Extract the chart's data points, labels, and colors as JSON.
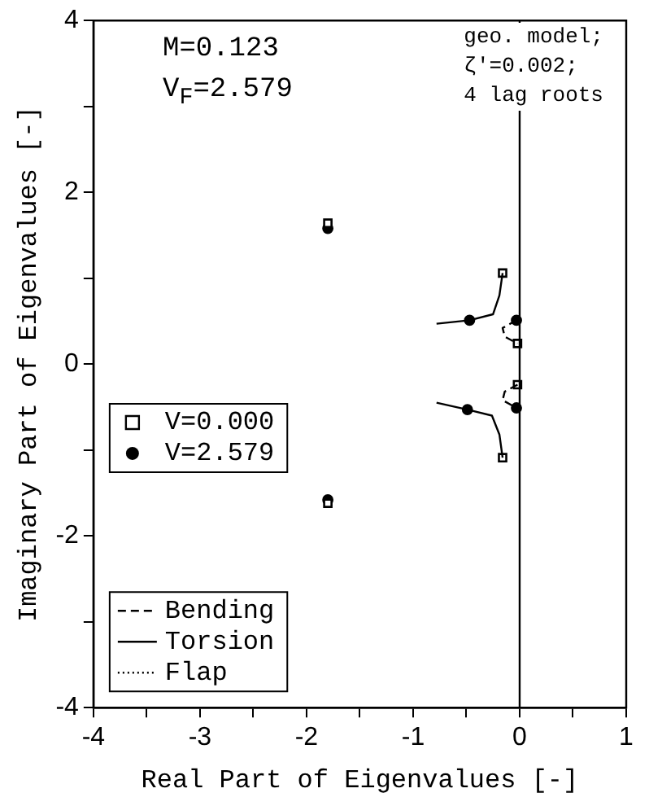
{
  "chart_data": {
    "type": "scatter",
    "xlabel": "Real Part of Eigenvalues [-]",
    "ylabel": "Imaginary Part of Eigenvalues [-]",
    "xlim": [
      -4,
      1
    ],
    "ylim": [
      -4,
      4
    ],
    "xticks": [
      -4,
      {
        "value": -3.5,
        "label": null
      },
      -3,
      {
        "value": -2.5,
        "label": null
      },
      -2,
      {
        "value": -1.5,
        "label": null
      },
      -1,
      {
        "value": -0.5,
        "label": null
      },
      0,
      {
        "value": 0.5,
        "label": null
      },
      1
    ],
    "yticks": [
      -4,
      {
        "value": -3,
        "label": null
      },
      -2,
      {
        "value": -1,
        "label": null
      },
      0,
      {
        "value": 1,
        "label": null
      },
      2,
      {
        "value": 3,
        "label": null
      },
      4
    ],
    "grid": false,
    "legend": "left",
    "ref_lines": [
      {
        "axis": "x",
        "value": 0,
        "color": "#000000"
      }
    ],
    "annotations": [
      "M=0.123\nV$_{F}$=2.579",
      "geo. model;\nζ′=0.002;\n4 lag roots"
    ],
    "series": [
      {
        "name": "Bending",
        "type": "line",
        "line_style": "dashed",
        "color": "#000000",
        "x": [
          -0.03,
          -0.16,
          -0.14,
          -0.02,
          null,
          -0.02,
          -0.14,
          -0.16,
          -0.03
        ],
        "values": [
          0.51,
          0.42,
          0.32,
          0.24,
          null,
          -0.24,
          -0.32,
          -0.42,
          -0.51
        ]
      },
      {
        "name": "Torsion",
        "type": "line",
        "line_style": "solid",
        "color": "#000000",
        "x": [
          -0.16,
          -0.19,
          -0.25,
          -0.47,
          -0.78,
          null,
          -0.16,
          -0.19,
          -0.26,
          -0.49,
          -0.78
        ],
        "values": [
          1.06,
          0.8,
          0.58,
          0.51,
          0.47,
          null,
          -1.09,
          -0.82,
          -0.6,
          -0.53,
          -0.45
        ]
      },
      {
        "name": "Flap",
        "type": "line",
        "line_style": "dotted",
        "color": "#000000"
      },
      {
        "name": "V=0.000",
        "type": "scatter",
        "marker": "square",
        "color": "#000000",
        "x": [
          -1.8,
          -1.8,
          -0.16,
          -0.16,
          -0.02,
          -0.02
        ],
        "values": [
          1.64,
          -1.62,
          1.06,
          -1.09,
          0.24,
          -0.24
        ]
      },
      {
        "name": "V=2.579",
        "type": "scatter",
        "marker": "circle",
        "color": "#000000",
        "x": [
          -1.8,
          -1.8,
          -0.47,
          -0.49,
          -0.03,
          -0.03
        ],
        "values": [
          1.58,
          -1.58,
          0.51,
          -0.53,
          0.51,
          -0.51
        ]
      }
    ]
  }
}
